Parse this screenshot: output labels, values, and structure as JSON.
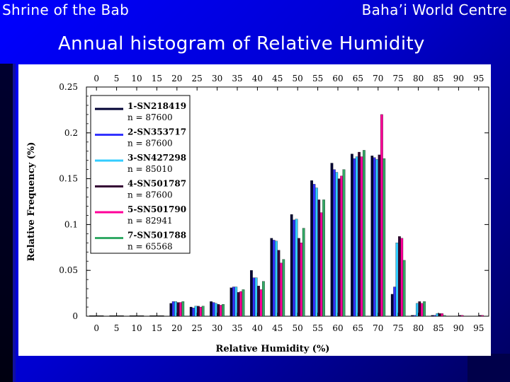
{
  "slide": {
    "header_left": "Shrine of the Bab",
    "header_right": "Baha’i World Centre",
    "title": "Annual histogram of Relative Humidity"
  },
  "chart_data": {
    "type": "bar",
    "xlabel": "Relative Humidity (%)",
    "ylabel": "Relative Frequency (%)",
    "x_ticks": [
      "0",
      "5",
      "10",
      "15",
      "20",
      "25",
      "30",
      "35",
      "40",
      "45",
      "50",
      "55",
      "60",
      "65",
      "70",
      "75",
      "80",
      "85",
      "90",
      "95"
    ],
    "y_ticks": [
      "0",
      "0.05",
      "0.1",
      "0.15",
      "0.2",
      "0.25"
    ],
    "ylim": [
      0,
      0.25
    ],
    "xlim": [
      -2.5,
      97.5
    ],
    "bin_width": 5,
    "bins": [
      0,
      5,
      10,
      15,
      20,
      25,
      30,
      35,
      40,
      45,
      50,
      55,
      60,
      65,
      70,
      75,
      80,
      85,
      90,
      95
    ],
    "legend_position": "top-left",
    "series": [
      {
        "name": "1-SN218419",
        "n_label": "n = 87600",
        "color": "#000033",
        "values": [
          0,
          0,
          0,
          0,
          0.014,
          0.01,
          0.016,
          0.031,
          0.05,
          0.085,
          0.111,
          0.148,
          0.167,
          0.177,
          0.175,
          0.024,
          0.001,
          0.001,
          0,
          0
        ]
      },
      {
        "name": "2-SN353717",
        "n_label": "n = 87600",
        "color": "#3333ff",
        "values": [
          0,
          0,
          0,
          0,
          0.016,
          0.009,
          0.015,
          0.032,
          0.042,
          0.083,
          0.105,
          0.144,
          0.16,
          0.172,
          0.173,
          0.032,
          0.001,
          0.001,
          0,
          0
        ]
      },
      {
        "name": "3-SN427298",
        "n_label": "n = 85010",
        "color": "#33ccff",
        "values": [
          0,
          0,
          0,
          0,
          0.016,
          0.011,
          0.014,
          0.032,
          0.042,
          0.082,
          0.106,
          0.14,
          0.157,
          0.174,
          0.171,
          0.08,
          0.014,
          0.003,
          0,
          0
        ]
      },
      {
        "name": "4-SN501787",
        "n_label": "n = 87600",
        "color": "#330033",
        "values": [
          0,
          0,
          0,
          0,
          0.015,
          0.011,
          0.013,
          0.026,
          0.033,
          0.072,
          0.085,
          0.127,
          0.15,
          0.179,
          0.176,
          0.087,
          0.016,
          0.003,
          0.001,
          0.001
        ]
      },
      {
        "name": "5-SN501790",
        "n_label": "n = 82941",
        "color": "#ff0099",
        "values": [
          0,
          0,
          0,
          0,
          0.015,
          0.01,
          0.012,
          0.027,
          0.029,
          0.058,
          0.08,
          0.113,
          0.153,
          0.174,
          0.22,
          0.085,
          0.014,
          0.003,
          0.001,
          0.001
        ]
      },
      {
        "name": "7-SN501788",
        "n_label": "n = 65568",
        "color": "#33aa66",
        "values": [
          0,
          0,
          0,
          0,
          0.016,
          0.011,
          0.013,
          0.029,
          0.038,
          0.062,
          0.096,
          0.127,
          0.16,
          0.181,
          0.172,
          0.061,
          0.016,
          0.001,
          0,
          0
        ]
      }
    ]
  }
}
